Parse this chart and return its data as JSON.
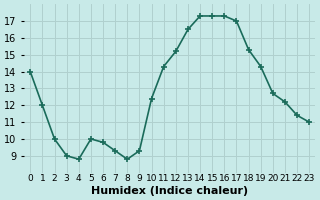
{
  "x": [
    0,
    1,
    2,
    3,
    4,
    5,
    6,
    7,
    8,
    9,
    10,
    11,
    12,
    13,
    14,
    15,
    16,
    17,
    18,
    19,
    20,
    21,
    22,
    23
  ],
  "y": [
    14,
    12,
    10,
    9,
    8.8,
    10,
    9.8,
    9.3,
    8.8,
    9.3,
    12.4,
    14.3,
    15.2,
    16.5,
    17.3,
    17.3,
    17.3,
    17.0,
    15.3,
    14.3,
    12.7,
    12.2,
    11.4,
    11.0
  ],
  "xlabel": "Humidex (Indice chaleur)",
  "ylim": [
    8,
    18
  ],
  "yticks": [
    9,
    10,
    11,
    12,
    13,
    14,
    15,
    16,
    17
  ],
  "xtick_labels": [
    "0",
    "1",
    "2",
    "3",
    "4",
    "5",
    "6",
    "7",
    "8",
    "9",
    "10",
    "11",
    "12",
    "13",
    "14",
    "15",
    "16",
    "17",
    "18",
    "19",
    "20",
    "21",
    "22",
    "23"
  ],
  "line_color": "#1a6b5a",
  "bg_color": "#c8eae8",
  "grid_color": "#b0d0ce",
  "marker": "+",
  "linewidth": 1.2,
  "markersize": 5
}
